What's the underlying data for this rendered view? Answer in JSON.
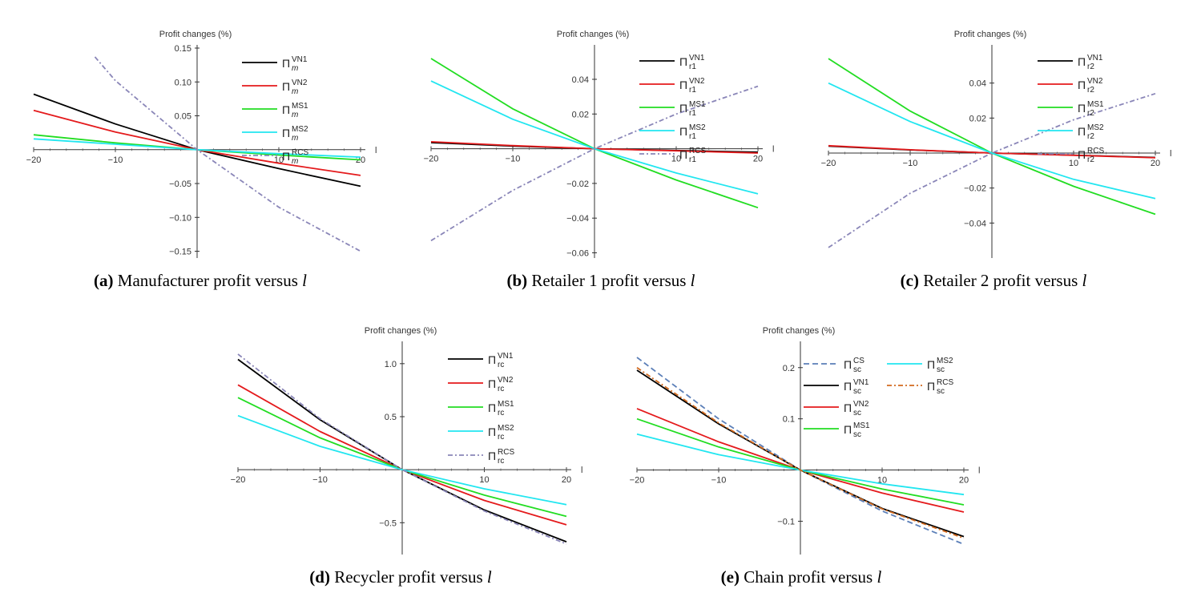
{
  "chart_data": [
    {
      "id": "a",
      "type": "line",
      "ylabel": "Profit changes (%)",
      "xlabel": "l",
      "xlim": [
        -20,
        20
      ],
      "ylim": [
        -0.16,
        0.15
      ],
      "xticks": [
        -20,
        -10,
        10,
        20
      ],
      "yticks": [
        0.15,
        0.1,
        0.05,
        -0.05,
        -0.1,
        -0.15
      ],
      "ytick_labels": [
        "0.15",
        "0.10",
        "0.05",
        "-0.05",
        "-0.10",
        "-0.15"
      ],
      "caption": {
        "letter": "(a)",
        "text": "Manufacturer profit versus ",
        "var": "l"
      },
      "series": [
        {
          "name": "Π",
          "sub": "m",
          "sup": "VN1",
          "color": "#000000",
          "dash": "",
          "x": [
            -20,
            -10,
            0,
            10,
            20
          ],
          "y": [
            0.082,
            0.038,
            0,
            -0.028,
            -0.054
          ]
        },
        {
          "name": "Π",
          "sub": "m",
          "sup": "VN2",
          "color": "#e41a1c",
          "dash": "",
          "x": [
            -20,
            -10,
            0,
            10,
            20
          ],
          "y": [
            0.058,
            0.026,
            0,
            -0.02,
            -0.038
          ]
        },
        {
          "name": "Π",
          "sub": "m",
          "sup": "MS1",
          "color": "#22dd22",
          "dash": "",
          "x": [
            -20,
            -10,
            0,
            10,
            20
          ],
          "y": [
            0.022,
            0.01,
            0,
            -0.008,
            -0.015
          ]
        },
        {
          "name": "Π",
          "sub": "m",
          "sup": "MS2",
          "color": "#22e6f0",
          "dash": "",
          "x": [
            -20,
            -10,
            0,
            10,
            20
          ],
          "y": [
            0.016,
            0.008,
            0,
            -0.006,
            -0.011
          ]
        },
        {
          "name": "Π",
          "sub": "m",
          "sup": "RCS",
          "color": "#8a86b8",
          "dash": "6,3,2,3",
          "x": [
            -12.5,
            -10,
            0,
            10,
            20
          ],
          "y": [
            0.137,
            0.102,
            0,
            -0.085,
            -0.15
          ]
        }
      ]
    },
    {
      "id": "b",
      "type": "line",
      "ylabel": "Profit changes (%)",
      "xlabel": "l",
      "xlim": [
        -20,
        20
      ],
      "ylim": [
        -0.063,
        0.058
      ],
      "xticks": [
        -20,
        -10,
        10,
        20
      ],
      "yticks": [
        0.04,
        0.02,
        -0.02,
        -0.04,
        -0.06
      ],
      "ytick_labels": [
        "0.04",
        "0.02",
        "-0.02",
        "-0.04",
        "-0.06"
      ],
      "caption": {
        "letter": "(b)",
        "text": "Retailer 1 profit versus ",
        "var": "l"
      },
      "series": [
        {
          "name": "Π",
          "sub": "r1",
          "sup": "VN1",
          "color": "#000000",
          "dash": "",
          "x": [
            -20,
            -10,
            0,
            10,
            20
          ],
          "y": [
            0.0035,
            0.0015,
            0,
            -0.001,
            -0.002
          ]
        },
        {
          "name": "Π",
          "sub": "r1",
          "sup": "VN2",
          "color": "#e41a1c",
          "dash": "",
          "x": [
            -20,
            -10,
            0,
            10,
            20
          ],
          "y": [
            0.004,
            0.0018,
            0,
            -0.0012,
            -0.0025
          ]
        },
        {
          "name": "Π",
          "sub": "r1",
          "sup": "MS1",
          "color": "#22dd22",
          "dash": "",
          "x": [
            -20,
            -10,
            0,
            10,
            20
          ],
          "y": [
            0.052,
            0.023,
            0,
            -0.018,
            -0.034
          ]
        },
        {
          "name": "Π",
          "sub": "r1",
          "sup": "MS2",
          "color": "#22e6f0",
          "dash": "",
          "x": [
            -20,
            -10,
            0,
            10,
            20
          ],
          "y": [
            0.039,
            0.017,
            0,
            -0.014,
            -0.026
          ]
        },
        {
          "name": "Π",
          "sub": "r1",
          "sup": "RCS",
          "color": "#8a86b8",
          "dash": "6,3,2,3",
          "x": [
            -20,
            -10,
            0,
            10,
            20
          ],
          "y": [
            -0.053,
            -0.024,
            0,
            0.02,
            0.036
          ]
        }
      ]
    },
    {
      "id": "c",
      "type": "line",
      "ylabel": "Profit changes (%)",
      "xlabel": "l",
      "xlim": [
        -20,
        20
      ],
      "ylim": [
        -0.06,
        0.06
      ],
      "xticks": [
        -20,
        -10,
        10,
        20
      ],
      "yticks": [
        0.04,
        0.02,
        -0.02,
        -0.04
      ],
      "ytick_labels": [
        "0.04",
        "0.02",
        "-0.02",
        "-0.04"
      ],
      "caption": {
        "letter": "(c)",
        "text": "Retailer 2 profit versus ",
        "var": "l"
      },
      "series": [
        {
          "name": "Π",
          "sub": "r2",
          "sup": "VN1",
          "color": "#000000",
          "dash": "",
          "x": [
            -20,
            -10,
            0,
            10,
            20
          ],
          "y": [
            0.004,
            0.0018,
            0,
            -0.0012,
            -0.0025
          ]
        },
        {
          "name": "Π",
          "sub": "r2",
          "sup": "VN2",
          "color": "#e41a1c",
          "dash": "",
          "x": [
            -20,
            -10,
            0,
            10,
            20
          ],
          "y": [
            0.0042,
            0.0019,
            0,
            -0.0013,
            -0.0027
          ]
        },
        {
          "name": "Π",
          "sub": "r2",
          "sup": "MS1",
          "color": "#22dd22",
          "dash": "",
          "x": [
            -20,
            -10,
            0,
            10,
            20
          ],
          "y": [
            0.054,
            0.024,
            0,
            -0.019,
            -0.035
          ]
        },
        {
          "name": "Π",
          "sub": "r2",
          "sup": "MS2",
          "color": "#22e6f0",
          "dash": "",
          "x": [
            -20,
            -10,
            0,
            10,
            20
          ],
          "y": [
            0.04,
            0.018,
            0,
            -0.015,
            -0.026
          ]
        },
        {
          "name": "Π",
          "sub": "r2",
          "sup": "RCS",
          "color": "#8a86b8",
          "dash": "6,3,2,3",
          "x": [
            -20,
            -10,
            0,
            10,
            20
          ],
          "y": [
            -0.054,
            -0.023,
            0,
            0.019,
            0.034
          ]
        }
      ]
    },
    {
      "id": "d",
      "type": "line",
      "ylabel": "Profit changes (%)",
      "xlabel": "l",
      "xlim": [
        -20,
        20
      ],
      "ylim": [
        -0.8,
        1.18
      ],
      "xticks": [
        -20,
        -10,
        10,
        20
      ],
      "yticks": [
        1.0,
        0.5,
        -0.5
      ],
      "ytick_labels": [
        "1.0",
        "0.5",
        "-0.5"
      ],
      "caption": {
        "letter": "(d)",
        "text": "Recycler profit versus ",
        "var": "l"
      },
      "series": [
        {
          "name": "Π",
          "sub": "rc",
          "sup": "VN1",
          "color": "#000000",
          "dash": "",
          "x": [
            -20,
            -10,
            0,
            10,
            20
          ],
          "y": [
            1.04,
            0.47,
            0,
            -0.38,
            -0.68
          ]
        },
        {
          "name": "Π",
          "sub": "rc",
          "sup": "VN2",
          "color": "#e41a1c",
          "dash": "",
          "x": [
            -20,
            -10,
            0,
            10,
            20
          ],
          "y": [
            0.8,
            0.36,
            0,
            -0.29,
            -0.52
          ]
        },
        {
          "name": "Π",
          "sub": "rc",
          "sup": "MS1",
          "color": "#22dd22",
          "dash": "",
          "x": [
            -20,
            -10,
            0,
            10,
            20
          ],
          "y": [
            0.68,
            0.3,
            0,
            -0.24,
            -0.44
          ]
        },
        {
          "name": "Π",
          "sub": "rc",
          "sup": "MS2",
          "color": "#22e6f0",
          "dash": "",
          "x": [
            -20,
            -10,
            0,
            10,
            20
          ],
          "y": [
            0.51,
            0.22,
            0,
            -0.18,
            -0.33
          ]
        },
        {
          "name": "Π",
          "sub": "rc",
          "sup": "RCS",
          "color": "#8a86b8",
          "dash": "6,3,2,3",
          "x": [
            -20,
            -10,
            0,
            10,
            20
          ],
          "y": [
            1.09,
            0.48,
            0,
            -0.39,
            -0.7
          ]
        }
      ]
    },
    {
      "id": "e",
      "type": "line",
      "ylabel": "Profit changes (%)",
      "xlabel": "l",
      "xlim": [
        -20,
        20
      ],
      "ylim": [
        -0.165,
        0.245
      ],
      "xticks": [
        -20,
        -10,
        10,
        20
      ],
      "yticks": [
        0.2,
        0.1,
        -0.1
      ],
      "ytick_labels": [
        "0.2",
        "0.1",
        "-0.1"
      ],
      "caption": {
        "letter": "(e)",
        "text": "Chain profit versus ",
        "var": "l"
      },
      "series": [
        {
          "name": "Π",
          "sub": "sc",
          "sup": "CS",
          "color": "#5b7fb8",
          "dash": "7,4",
          "x": [
            -20,
            -10,
            0,
            10,
            20
          ],
          "y": [
            0.22,
            0.1,
            0,
            -0.08,
            -0.145
          ]
        },
        {
          "name": "Π",
          "sub": "sc",
          "sup": "VN1",
          "color": "#000000",
          "dash": "",
          "x": [
            -20,
            -10,
            0,
            10,
            20
          ],
          "y": [
            0.195,
            0.09,
            0,
            -0.075,
            -0.13
          ]
        },
        {
          "name": "Π",
          "sub": "sc",
          "sup": "VN2",
          "color": "#e41a1c",
          "dash": "",
          "x": [
            -20,
            -10,
            0,
            10,
            20
          ],
          "y": [
            0.12,
            0.055,
            0,
            -0.045,
            -0.082
          ]
        },
        {
          "name": "Π",
          "sub": "sc",
          "sup": "MS1",
          "color": "#22dd22",
          "dash": "",
          "x": [
            -20,
            -10,
            0,
            10,
            20
          ],
          "y": [
            0.1,
            0.045,
            0,
            -0.037,
            -0.068
          ]
        },
        {
          "name": "Π",
          "sub": "sc",
          "sup": "MS2",
          "color": "#22e6f0",
          "dash": "",
          "x": [
            -20,
            -10,
            0,
            10,
            20
          ],
          "y": [
            0.07,
            0.03,
            0,
            -0.027,
            -0.048
          ]
        },
        {
          "name": "Π",
          "sub": "sc",
          "sup": "RCS",
          "color": "#d2691e",
          "dash": "6,3,2,3",
          "x": [
            -20,
            -10,
            0,
            10,
            20
          ],
          "y": [
            0.2,
            0.092,
            0,
            -0.076,
            -0.133
          ]
        }
      ]
    }
  ]
}
